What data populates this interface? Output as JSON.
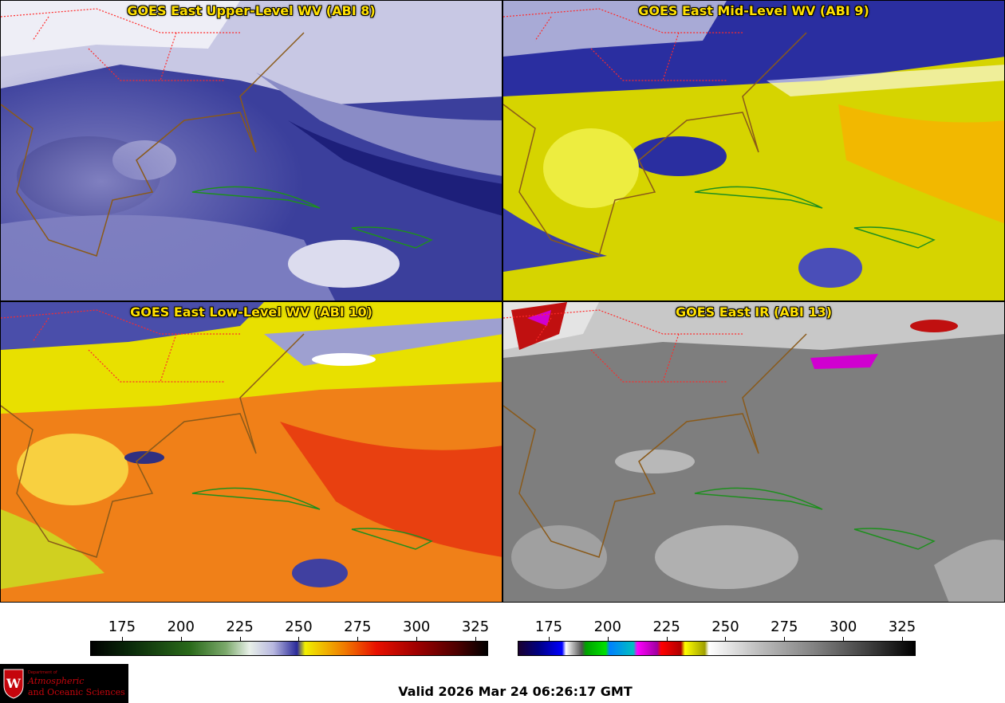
{
  "panels": [
    {
      "title": "GOES East Upper-Level WV (ABI 8)"
    },
    {
      "title": "GOES East Mid-Level WV (ABI 9)"
    },
    {
      "title": "GOES East Low-Level WV (ABI 10)"
    },
    {
      "title": "GOES East IR (ABI 13)"
    }
  ],
  "colorbars": {
    "wv": {
      "ticks": [
        "175",
        "200",
        "225",
        "250",
        "275",
        "300",
        "325"
      ]
    },
    "ir": {
      "ticks": [
        "175",
        "200",
        "225",
        "250",
        "275",
        "300",
        "325"
      ]
    }
  },
  "footer": {
    "valid_text": "Valid 2026 Mar 24 06:26:17 GMT",
    "logo_lines": [
      "Department of",
      "Atmospheric",
      "and Oceanic Sciences"
    ],
    "logo_seal_letter": "W"
  },
  "colors": {
    "title_text": "#ffe000",
    "state_borders": "#ff2a2a",
    "coastlines_us": "#8a5a1a",
    "coastlines_carib": "#1e8f1e",
    "upper_wv_base": "#3a3f9a",
    "mid_wv_base": "#d8d800",
    "low_wv_base": "#f07a10",
    "ir_base": "#808080"
  }
}
